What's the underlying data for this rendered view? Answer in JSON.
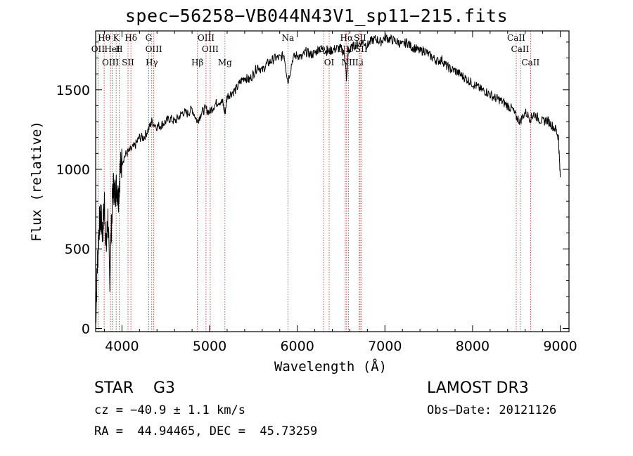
{
  "chart_data": {
    "type": "line",
    "title": "spec−56258−VB044N43V1_sp11−215.fits",
    "xlabel": "Wavelength (Å)",
    "ylabel": "Flux (relative)",
    "xlim": [
      3700,
      9100
    ],
    "ylim": [
      -20,
      1870
    ],
    "x_ticks": [
      4000,
      5000,
      6000,
      7000,
      8000,
      9000
    ],
    "y_ticks": [
      0,
      500,
      1000,
      1500
    ],
    "grid": false,
    "series": [
      {
        "name": "spectrum",
        "x": [
          3700,
          3720,
          3740,
          3760,
          3780,
          3800,
          3820,
          3840,
          3860,
          3880,
          3900,
          3920,
          3940,
          3960,
          3980,
          4000,
          4050,
          4100,
          4150,
          4200,
          4250,
          4300,
          4340,
          4400,
          4450,
          4500,
          4550,
          4600,
          4650,
          4700,
          4750,
          4800,
          4861,
          4900,
          4950,
          5000,
          5050,
          5100,
          5150,
          5175,
          5200,
          5250,
          5300,
          5350,
          5400,
          5450,
          5500,
          5550,
          5600,
          5650,
          5700,
          5750,
          5800,
          5850,
          5893,
          5950,
          6000,
          6050,
          6100,
          6150,
          6200,
          6250,
          6300,
          6350,
          6400,
          6450,
          6500,
          6540,
          6563,
          6580,
          6600,
          6650,
          6700,
          6750,
          6800,
          6850,
          6900,
          6950,
          7000,
          7050,
          7100,
          7150,
          7200,
          7250,
          7300,
          7350,
          7400,
          7450,
          7500,
          7550,
          7600,
          7650,
          7700,
          7750,
          7800,
          7850,
          7900,
          7950,
          8000,
          8050,
          8100,
          8150,
          8200,
          8250,
          8300,
          8350,
          8400,
          8450,
          8498,
          8542,
          8600,
          8662,
          8700,
          8750,
          8800,
          8850,
          8900,
          8950,
          8980,
          9000
        ],
        "y": [
          50,
          400,
          650,
          700,
          600,
          800,
          500,
          700,
          300,
          650,
          900,
          850,
          900,
          820,
          1000,
          1050,
          1100,
          1120,
          1150,
          1200,
          1200,
          1250,
          1300,
          1270,
          1280,
          1300,
          1320,
          1300,
          1330,
          1360,
          1350,
          1380,
          1300,
          1350,
          1380,
          1360,
          1400,
          1430,
          1420,
          1350,
          1460,
          1480,
          1500,
          1550,
          1580,
          1560,
          1600,
          1650,
          1620,
          1660,
          1680,
          1700,
          1700,
          1720,
          1550,
          1700,
          1720,
          1700,
          1740,
          1720,
          1730,
          1760,
          1750,
          1740,
          1750,
          1760,
          1760,
          1720,
          1560,
          1740,
          1750,
          1780,
          1790,
          1800,
          1780,
          1810,
          1820,
          1800,
          1830,
          1820,
          1810,
          1800,
          1780,
          1800,
          1770,
          1760,
          1740,
          1750,
          1720,
          1700,
          1680,
          1690,
          1650,
          1630,
          1620,
          1600,
          1580,
          1560,
          1540,
          1520,
          1500,
          1490,
          1470,
          1450,
          1440,
          1420,
          1400,
          1380,
          1330,
          1300,
          1360,
          1320,
          1350,
          1320,
          1300,
          1310,
          1280,
          1250,
          1200,
          950
        ]
      }
    ],
    "lines": [
      {
        "label": "Hθ",
        "x": 3797
      },
      {
        "label": "OII",
        "x": 3727
      },
      {
        "label": "OIII",
        "x": 3869
      },
      {
        "label": "K",
        "x": 3934
      },
      {
        "label": "HeI",
        "x": 3889
      },
      {
        "label": "SII",
        "x": 4069
      },
      {
        "label": "Hδ",
        "x": 4102
      },
      {
        "label": "H",
        "x": 3968
      },
      {
        "label": "Hγ",
        "x": 4340
      },
      {
        "label": "G",
        "x": 4305
      },
      {
        "label": "OIII",
        "x": 4363
      },
      {
        "label": "Hβ",
        "x": 4861
      },
      {
        "label": "OIII",
        "x": 4959
      },
      {
        "label": "OIII",
        "x": 5007
      },
      {
        "label": "Mg",
        "x": 5175
      },
      {
        "label": "Na",
        "x": 5893
      },
      {
        "label": "OI",
        "x": 6300
      },
      {
        "label": "OI",
        "x": 6364
      },
      {
        "label": "Hα",
        "x": 6563
      },
      {
        "label": "NII",
        "x": 6548
      },
      {
        "label": "NII",
        "x": 6583
      },
      {
        "label": "SII",
        "x": 6717
      },
      {
        "label": "SII",
        "x": 6731
      },
      {
        "label": "Li",
        "x": 6708
      },
      {
        "label": "CaII",
        "x": 8498
      },
      {
        "label": "CaII",
        "x": 8542
      },
      {
        "label": "CaII",
        "x": 8662
      }
    ]
  },
  "info": {
    "star": "STAR    G3",
    "survey": "LAMOST DR3",
    "cz": "cz = −40.9 ± 1.1 km/s",
    "obsdate": "Obs−Date: 20121126",
    "radec": "RA =  44.94465, DEC =  45.73259"
  }
}
